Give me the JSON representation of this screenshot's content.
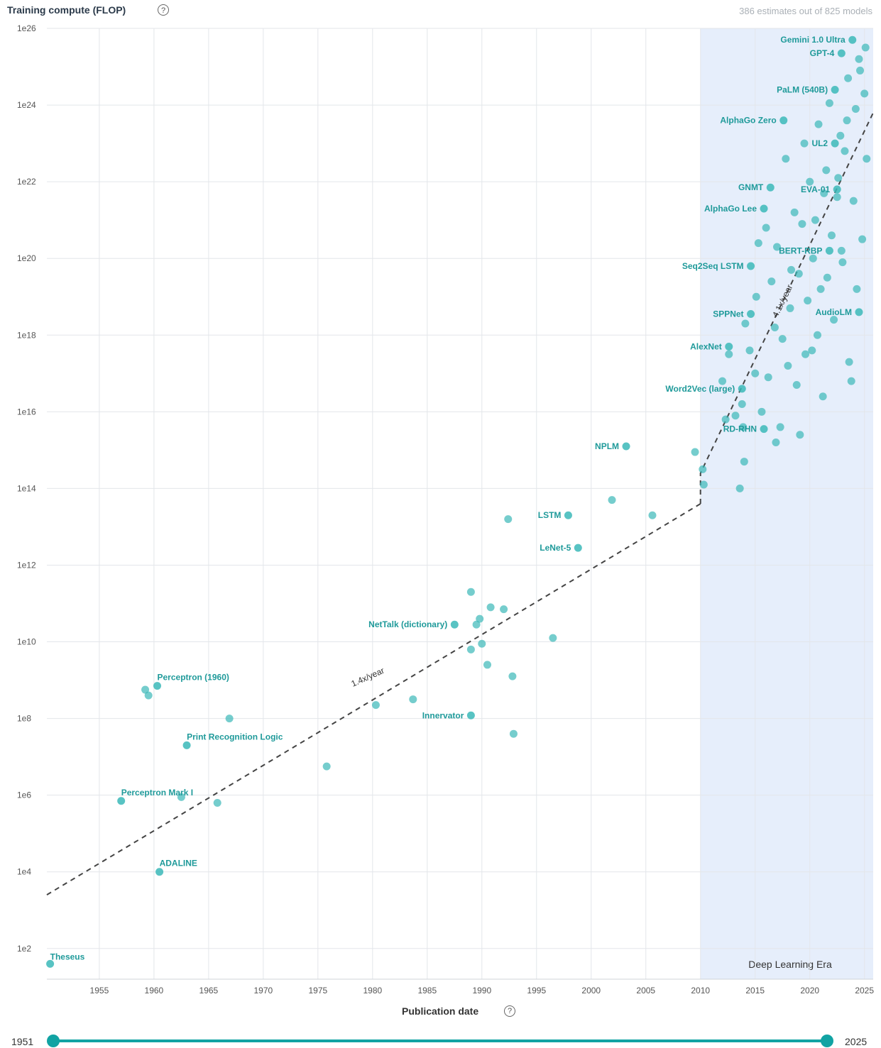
{
  "header": {
    "title": "Training compute (FLOP)",
    "help_icon": "question-circle-icon",
    "count_text": "386 estimates out of 825 models"
  },
  "slider": {
    "min_label": "1951",
    "max_label": "2025",
    "min_value": 1951,
    "max_value": 2025
  },
  "chart_data": {
    "type": "scatter",
    "title": "Training compute (FLOP)",
    "xlabel": "Publication date",
    "ylabel": "",
    "y_scale": "log",
    "xlim": [
      1950.2,
      2025.8
    ],
    "ylim": [
      8,
      26
    ],
    "x_ticks": [
      1955,
      1960,
      1965,
      1970,
      1975,
      1980,
      1985,
      1990,
      1995,
      2000,
      2005,
      2010,
      2015,
      2020,
      2025
    ],
    "y_ticks": [
      {
        "exp": 26,
        "label": "1e26"
      },
      {
        "exp": 24,
        "label": "1e24"
      },
      {
        "exp": 22,
        "label": "1e22"
      },
      {
        "exp": 20,
        "label": "1e20"
      },
      {
        "exp": 18,
        "label": "1e18"
      },
      {
        "exp": 16,
        "label": "1e16"
      },
      {
        "exp": 14,
        "label": "1e14"
      },
      {
        "exp": 12,
        "label": "1e12"
      },
      {
        "exp": 10,
        "label": "1e10"
      },
      {
        "exp": 8,
        "label": "1e8"
      },
      {
        "exp": 6,
        "label": "1e6"
      },
      {
        "exp": 4,
        "label": "1e4"
      },
      {
        "exp": 2,
        "label": "1e2"
      }
    ],
    "grid": true,
    "shaded_region": {
      "x_start": 2010,
      "x_end": 2025.8,
      "label": "Deep Learning Era"
    },
    "trend_lines": [
      {
        "label": "1.4x/year",
        "points": [
          [
            1950.2,
            3.4
          ],
          [
            2010,
            13.6
          ]
        ]
      },
      {
        "label": "4.1x/year",
        "points": [
          [
            2010,
            13.6
          ],
          [
            2010,
            14.4
          ],
          [
            2025.8,
            23.8
          ]
        ]
      }
    ],
    "labeled_points": [
      {
        "name": "Theseus",
        "x": 1950.5,
        "y": 1.6
      },
      {
        "name": "ADALINE",
        "x": 1960.5,
        "y": 4.0
      },
      {
        "name": "Perceptron Mark I",
        "x": 1957.0,
        "y": 5.85
      },
      {
        "name": "Print Recognition Logic",
        "x": 1963.0,
        "y": 7.3
      },
      {
        "name": "Perceptron (1960)",
        "x": 1960.3,
        "y": 8.85
      },
      {
        "name": "Innervator",
        "x": 1989.0,
        "y": 8.08
      },
      {
        "name": "NetTalk (dictionary)",
        "x": 1987.5,
        "y": 10.45
      },
      {
        "name": "LeNet-5",
        "x": 1998.8,
        "y": 12.45
      },
      {
        "name": "LSTM",
        "x": 1997.9,
        "y": 13.3
      },
      {
        "name": "NPLM",
        "x": 2003.2,
        "y": 15.1
      },
      {
        "name": "RD-RHN",
        "x": 2015.8,
        "y": 15.55
      },
      {
        "name": "Word2Vec (large)",
        "x": 2013.8,
        "y": 16.6
      },
      {
        "name": "AlexNet",
        "x": 2012.6,
        "y": 17.7
      },
      {
        "name": "SPPNet",
        "x": 2014.6,
        "y": 18.55
      },
      {
        "name": "AudioLM",
        "x": 2024.5,
        "y": 18.6
      },
      {
        "name": "Seq2Seq LSTM",
        "x": 2014.6,
        "y": 19.8
      },
      {
        "name": "BERT-RBP",
        "x": 2021.8,
        "y": 20.2
      },
      {
        "name": "AlphaGo Lee",
        "x": 2015.8,
        "y": 21.3
      },
      {
        "name": "EVA-01",
        "x": 2022.5,
        "y": 21.8
      },
      {
        "name": "GNMT",
        "x": 2016.4,
        "y": 21.85
      },
      {
        "name": "UL2",
        "x": 2022.3,
        "y": 23.0
      },
      {
        "name": "AlphaGo Zero",
        "x": 2017.6,
        "y": 23.6
      },
      {
        "name": "PaLM (540B)",
        "x": 2022.3,
        "y": 24.4
      },
      {
        "name": "GPT-4",
        "x": 2022.9,
        "y": 25.35
      },
      {
        "name": "Gemini 1.0 Ultra",
        "x": 2023.9,
        "y": 25.7
      }
    ],
    "other_points": [
      [
        1959.2,
        8.75
      ],
      [
        1959.5,
        8.6
      ],
      [
        1962.5,
        5.95
      ],
      [
        1965.8,
        5.8
      ],
      [
        1966.9,
        8.0
      ],
      [
        1975.8,
        6.75
      ],
      [
        1980.3,
        8.35
      ],
      [
        1983.7,
        8.5
      ],
      [
        1989.0,
        9.8
      ],
      [
        1989.0,
        11.3
      ],
      [
        1989.5,
        10.45
      ],
      [
        1989.8,
        10.6
      ],
      [
        1990.0,
        9.95
      ],
      [
        1990.5,
        9.4
      ],
      [
        1990.8,
        10.9
      ],
      [
        1992.0,
        10.85
      ],
      [
        1992.4,
        13.2
      ],
      [
        1992.8,
        9.1
      ],
      [
        1992.9,
        7.6
      ],
      [
        1996.5,
        10.1
      ],
      [
        2001.9,
        13.7
      ],
      [
        2005.6,
        13.3
      ],
      [
        2009.5,
        14.95
      ],
      [
        2010.2,
        14.5
      ],
      [
        2010.3,
        14.1
      ],
      [
        2012.0,
        16.8
      ],
      [
        2012.3,
        15.8
      ],
      [
        2012.6,
        17.5
      ],
      [
        2013.2,
        15.9
      ],
      [
        2013.6,
        14.0
      ],
      [
        2013.8,
        16.2
      ],
      [
        2013.9,
        15.6
      ],
      [
        2014.0,
        14.7
      ],
      [
        2014.1,
        18.3
      ],
      [
        2014.5,
        17.6
      ],
      [
        2015.0,
        17.0
      ],
      [
        2015.1,
        19.0
      ],
      [
        2015.3,
        20.4
      ],
      [
        2015.6,
        16.0
      ],
      [
        2016.0,
        20.8
      ],
      [
        2016.2,
        16.9
      ],
      [
        2016.5,
        19.4
      ],
      [
        2016.9,
        15.2
      ],
      [
        2017.0,
        20.3
      ],
      [
        2017.3,
        15.6
      ],
      [
        2017.8,
        22.6
      ],
      [
        2018.0,
        17.2
      ],
      [
        2018.3,
        19.7
      ],
      [
        2018.8,
        16.7
      ],
      [
        2019.1,
        15.4
      ],
      [
        2019.3,
        20.9
      ],
      [
        2019.5,
        23.0
      ],
      [
        2019.8,
        18.9
      ],
      [
        2020.0,
        22.0
      ],
      [
        2020.2,
        17.6
      ],
      [
        2020.5,
        21.0
      ],
      [
        2020.8,
        23.5
      ],
      [
        2021.0,
        19.2
      ],
      [
        2021.2,
        16.4
      ],
      [
        2021.5,
        22.3
      ],
      [
        2021.8,
        24.05
      ],
      [
        2022.0,
        20.6
      ],
      [
        2022.2,
        18.4
      ],
      [
        2022.5,
        21.6
      ],
      [
        2022.8,
        23.2
      ],
      [
        2023.0,
        19.9
      ],
      [
        2023.2,
        22.8
      ],
      [
        2023.5,
        24.7
      ],
      [
        2023.8,
        16.8
      ],
      [
        2024.0,
        21.5
      ],
      [
        2024.2,
        23.9
      ],
      [
        2024.5,
        25.2
      ],
      [
        2025.0,
        24.3
      ],
      [
        2025.2,
        22.6
      ],
      [
        2024.8,
        20.5
      ],
      [
        2024.3,
        19.2
      ],
      [
        2023.6,
        17.3
      ],
      [
        2018.6,
        21.2
      ],
      [
        2019.0,
        19.6
      ],
      [
        2020.3,
        20.0
      ],
      [
        2021.3,
        21.7
      ],
      [
        2022.6,
        22.1
      ],
      [
        2023.4,
        23.6
      ],
      [
        2024.6,
        24.9
      ],
      [
        2025.1,
        25.5
      ],
      [
        2016.8,
        18.2
      ],
      [
        2017.5,
        17.9
      ],
      [
        2018.2,
        18.7
      ],
      [
        2019.6,
        17.5
      ],
      [
        2020.7,
        18.0
      ],
      [
        2021.6,
        19.5
      ],
      [
        2022.9,
        20.2
      ]
    ]
  }
}
